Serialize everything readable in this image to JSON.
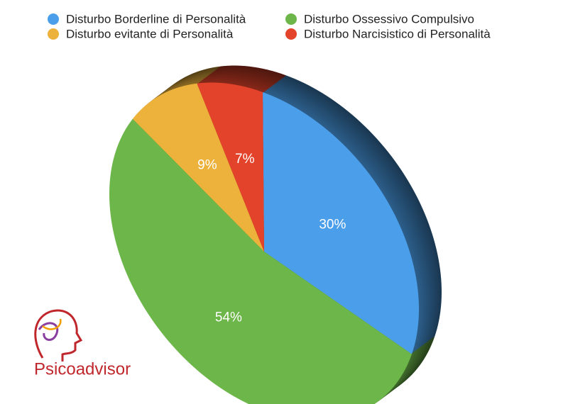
{
  "chart_data": {
    "type": "pie",
    "categories": [
      "Disturbo Borderline di Personalità",
      "Disturbo Ossessivo Compulsivo",
      "Disturbo evitante di Personalità",
      "Disturbo Narcisistico di Personalità"
    ],
    "values": [
      30,
      54,
      9,
      7
    ],
    "value_labels": [
      "30%",
      "54%",
      "9%",
      "7%"
    ],
    "colors": [
      "#4b9fea",
      "#6cb64a",
      "#ecb23c",
      "#e2432a"
    ],
    "legend": "top"
  },
  "logo": {
    "text": "Psicoadvisor"
  }
}
